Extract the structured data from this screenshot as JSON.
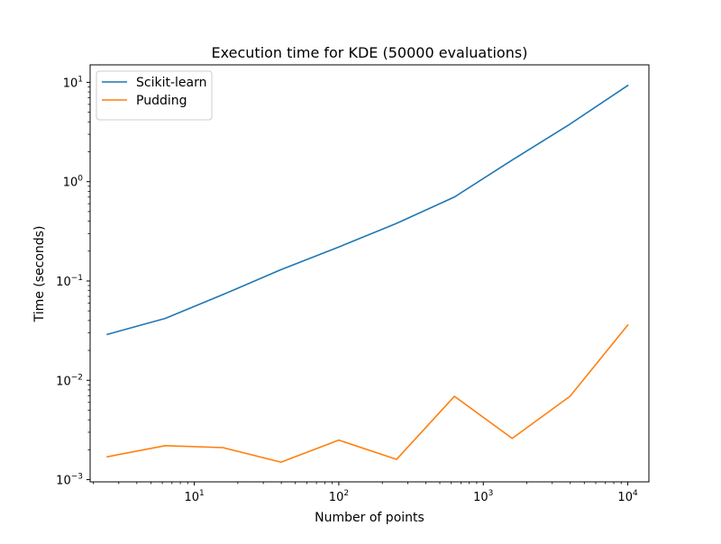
{
  "chart_data": {
    "type": "line",
    "title": "Execution time for KDE (50000 evaluations)",
    "xlabel": "Number of points",
    "ylabel": "Time (seconds)",
    "xscale": "log",
    "yscale": "log",
    "xlim": [
      1.9,
      14000
    ],
    "ylim": [
      0.00095,
      15
    ],
    "x_ticks": [
      {
        "value": 10,
        "base": "10",
        "exp": "1"
      },
      {
        "value": 100,
        "base": "10",
        "exp": "2"
      },
      {
        "value": 1000,
        "base": "10",
        "exp": "3"
      },
      {
        "value": 10000,
        "base": "10",
        "exp": "4"
      }
    ],
    "y_ticks": [
      {
        "value": 0.001,
        "base": "10",
        "exp": "−3"
      },
      {
        "value": 0.01,
        "base": "10",
        "exp": "−2"
      },
      {
        "value": 0.1,
        "base": "10",
        "exp": "−1"
      },
      {
        "value": 1,
        "base": "10",
        "exp": "0"
      },
      {
        "value": 10,
        "base": "10",
        "exp": "1"
      }
    ],
    "grid": false,
    "legend_position": "top-left",
    "x": [
      2.5,
      6.3,
      15.8,
      39.8,
      100,
      251,
      631,
      1585,
      3981,
      10000
    ],
    "series": [
      {
        "name": "Scikit-learn",
        "color": "#1f77b4",
        "values": [
          0.029,
          0.042,
          0.073,
          0.13,
          0.22,
          0.38,
          0.7,
          1.65,
          3.8,
          9.3
        ]
      },
      {
        "name": "Pudding",
        "color": "#ff7f0e",
        "values": [
          0.0017,
          0.0022,
          0.0021,
          0.0015,
          0.0025,
          0.0016,
          0.0069,
          0.0026,
          0.0069,
          0.036
        ]
      }
    ]
  }
}
